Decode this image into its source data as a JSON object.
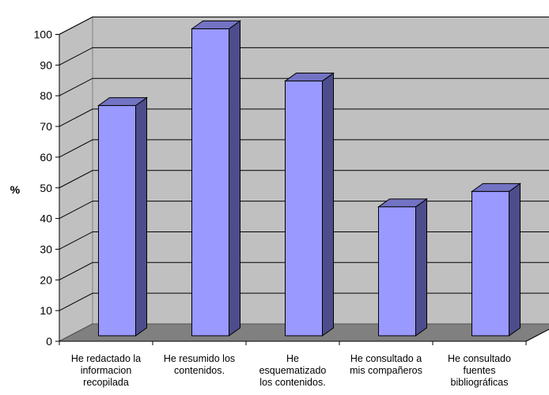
{
  "chart_data": {
    "type": "bar",
    "three_d": true,
    "categories": [
      [
        "He redactado la",
        "informacion",
        "recopilada"
      ],
      [
        "He resumido los",
        "contenidos."
      ],
      [
        "He",
        "esquematizado",
        "los contenidos."
      ],
      [
        "He consultado a",
        "mis compañeros"
      ],
      [
        "He consultado",
        "fuentes",
        "bibliográficas"
      ]
    ],
    "values": [
      75,
      100,
      83,
      42,
      47
    ],
    "ylabel": "%",
    "ylim": [
      0,
      100
    ],
    "yticks": [
      0,
      10,
      20,
      30,
      40,
      50,
      60,
      70,
      80,
      90,
      100
    ],
    "grid": true,
    "legend": "none",
    "colors": {
      "bar_front": "#9999ff",
      "bar_side": "#4d4d8c",
      "bar_top": "#7373c4",
      "wall": "#c0c0c0",
      "floor": "#808080",
      "grid": "#000000"
    }
  }
}
